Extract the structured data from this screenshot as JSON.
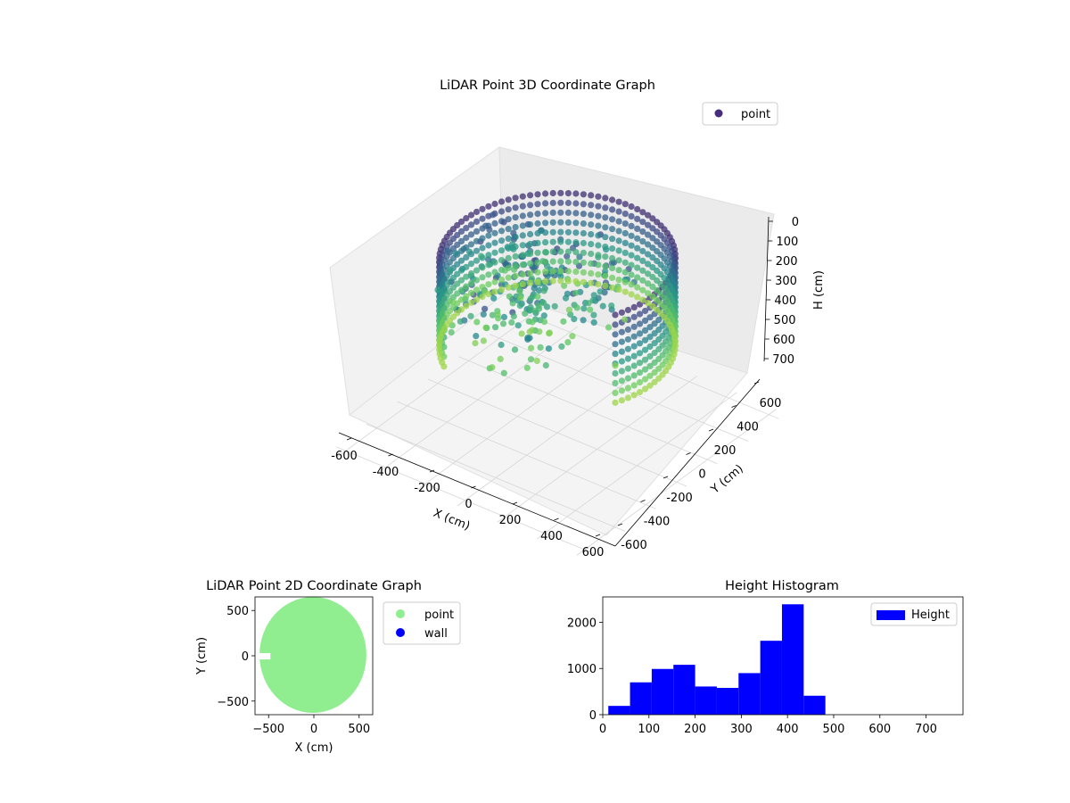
{
  "chart_data": [
    {
      "type": "scatter",
      "projection": "3d",
      "title": "LiDAR Point 3D Coordinate Graph",
      "xlabel": "X (cm)",
      "ylabel": "Y (cm)",
      "zlabel": "H (cm)",
      "x_ticks": [
        -600,
        -400,
        -200,
        0,
        200,
        400,
        600
      ],
      "y_ticks": [
        600,
        400,
        200,
        0,
        -200,
        -400,
        -600
      ],
      "z_ticks": [
        0,
        100,
        200,
        300,
        400,
        500,
        600,
        700
      ],
      "xlim": [
        -650,
        650
      ],
      "ylim": [
        -650,
        650
      ],
      "zlim": [
        0,
        780
      ],
      "z_inverted": true,
      "colormap": "viridis",
      "legend": {
        "entries": [
          "point"
        ],
        "placement": "top-right",
        "color": "#472d7b"
      },
      "grid": true
    },
    {
      "type": "scatter",
      "title": "LiDAR Point 2D Coordinate Graph",
      "xlabel": "X (cm)",
      "ylabel": "Y (cm)",
      "x_ticks": [
        -500,
        0,
        500
      ],
      "y_ticks": [
        500,
        0,
        -500
      ],
      "xlim": [
        -650,
        650
      ],
      "ylim": [
        -650,
        650
      ],
      "series": [
        {
          "name": "point",
          "color": "#90ee90"
        },
        {
          "name": "wall",
          "color": "#0000ff"
        }
      ],
      "legend": {
        "placement": "outside-right"
      }
    },
    {
      "type": "bar",
      "title": "Height Histogram",
      "x_ticks": [
        0,
        100,
        200,
        300,
        400,
        500,
        600,
        700
      ],
      "y_ticks": [
        0,
        1000,
        2000
      ],
      "xlim": [
        0,
        780
      ],
      "ylim": [
        0,
        2550
      ],
      "bins": [
        {
          "x0": 12,
          "x1": 59,
          "count": 190
        },
        {
          "x0": 59,
          "x1": 106,
          "count": 700
        },
        {
          "x0": 106,
          "x1": 153,
          "count": 990
        },
        {
          "x0": 153,
          "x1": 200,
          "count": 1080
        },
        {
          "x0": 200,
          "x1": 247,
          "count": 610
        },
        {
          "x0": 247,
          "x1": 294,
          "count": 580
        },
        {
          "x0": 294,
          "x1": 341,
          "count": 900
        },
        {
          "x0": 341,
          "x1": 388,
          "count": 1600
        },
        {
          "x0": 388,
          "x1": 435,
          "count": 2390
        },
        {
          "x0": 435,
          "x1": 482,
          "count": 410
        }
      ],
      "bar_color": "#0000ff",
      "legend": {
        "entries": [
          "Height"
        ],
        "placement": "top-right"
      }
    }
  ]
}
